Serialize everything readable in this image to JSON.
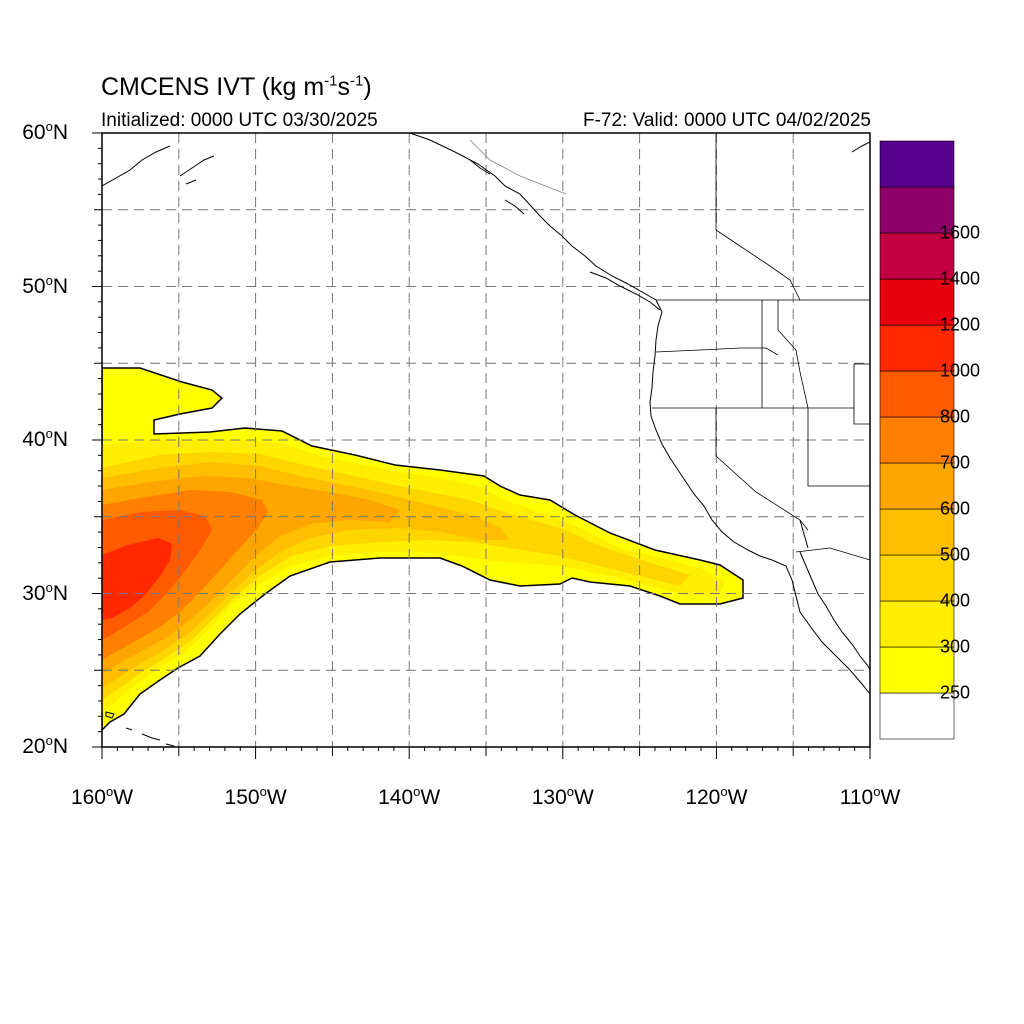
{
  "title": {
    "main": "CMCENS IVT (kg m",
    "sup1": "-1",
    "mid": "s",
    "sup2": "-1",
    "end": ")"
  },
  "initialized": "Initialized: 0000 UTC 03/30/2025",
  "valid": "F-72: Valid: 0000 UTC 04/02/2025",
  "map": {
    "lon_range": [
      -160,
      -110
    ],
    "lat_range": [
      20,
      60
    ],
    "grid_lon_step": 5,
    "grid_lat_step": 5,
    "lat_labels": [
      {
        "value": 60,
        "text": "60",
        "suffix": "N"
      },
      {
        "value": 50,
        "text": "50",
        "suffix": "N"
      },
      {
        "value": 40,
        "text": "40",
        "suffix": "N"
      },
      {
        "value": 30,
        "text": "30",
        "suffix": "N"
      },
      {
        "value": 20,
        "text": "20",
        "suffix": "N"
      }
    ],
    "lon_labels": [
      {
        "value": -160,
        "text": "160",
        "suffix": "W"
      },
      {
        "value": -150,
        "text": "150",
        "suffix": "W"
      },
      {
        "value": -140,
        "text": "140",
        "suffix": "W"
      },
      {
        "value": -130,
        "text": "130",
        "suffix": "W"
      },
      {
        "value": -120,
        "text": "120",
        "suffix": "W"
      },
      {
        "value": -110,
        "text": "110",
        "suffix": "W"
      }
    ]
  },
  "colorbar": {
    "levels": [
      {
        "color": "#ffffff",
        "label": ""
      },
      {
        "color": "#ffff00",
        "label": "250"
      },
      {
        "color": "#ffee00",
        "label": "300"
      },
      {
        "color": "#ffd500",
        "label": "400"
      },
      {
        "color": "#ffbf00",
        "label": "500"
      },
      {
        "color": "#ffa500",
        "label": "600"
      },
      {
        "color": "#ff8000",
        "label": "700"
      },
      {
        "color": "#ff5a00",
        "label": "800"
      },
      {
        "color": "#ff2800",
        "label": "1000"
      },
      {
        "color": "#e60010",
        "label": "1200"
      },
      {
        "color": "#c00040",
        "label": "1400"
      },
      {
        "color": "#8c0068",
        "label": "1600"
      },
      {
        "color": "#580090",
        "label": ""
      }
    ]
  },
  "ivt_field": {
    "description_units": "kg m-1 s-1",
    "plumes": [
      {
        "lon": -157,
        "lat": 31.5,
        "value": 1000
      },
      {
        "lon": -153,
        "lat": 34,
        "value": 800
      },
      {
        "lon": -148,
        "lat": 36,
        "value": 700
      },
      {
        "lon": -140,
        "lat": 35.5,
        "value": 600
      },
      {
        "lon": -132,
        "lat": 34,
        "value": 500
      },
      {
        "lon": -124,
        "lat": 32,
        "value": 400
      }
    ]
  }
}
